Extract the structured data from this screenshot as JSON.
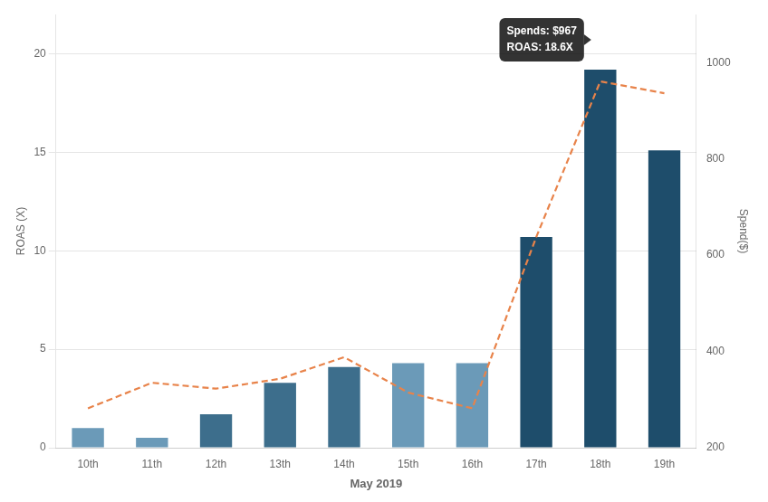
{
  "chart_data": {
    "type": "bar",
    "categories": [
      "10th",
      "11th",
      "12th",
      "13th",
      "14th",
      "15th",
      "16th",
      "17th",
      "18th",
      "19th"
    ],
    "series": [
      {
        "type": "bar",
        "colors": [
          "#6b9ab8",
          "#6b9ab8",
          "#3d6e8c",
          "#3d6e8c",
          "#3d6e8c",
          "#6b9ab8",
          "#6b9ab8",
          "#1e4d6b",
          "#1e4d6b",
          "#1e4d6b"
        ],
        "values": [
          1.0,
          0.5,
          1.7,
          3.3,
          4.1,
          4.3,
          4.3,
          10.7,
          19.2,
          15.1
        ]
      },
      {
        "type": "line",
        "color": "#e8834a",
        "line_style": "dashed",
        "values": [
          2.0,
          3.3,
          3.0,
          3.5,
          4.6,
          2.8,
          2.0,
          10.7,
          18.6,
          18.0
        ]
      }
    ],
    "xlabel": "May 2019",
    "ylabel": "ROAS (X)",
    "y2label": "Spend($)",
    "ylim": [
      0,
      22
    ],
    "yticks": [
      0,
      5,
      10,
      15,
      20
    ],
    "y2lim": [
      200,
      1100
    ],
    "y2ticks": [
      200,
      400,
      600,
      800,
      1000
    ],
    "grid": "y",
    "annotations": [
      "Spends: $967",
      "ROAS: 18.6X"
    ]
  }
}
